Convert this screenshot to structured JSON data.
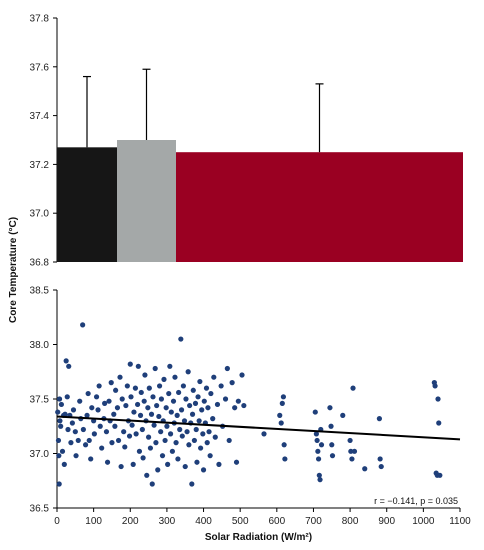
{
  "chart_data": [
    {
      "type": "bar",
      "categories": [
        "",
        "",
        ""
      ],
      "values": [
        37.27,
        37.3,
        37.25
      ],
      "error_upper": [
        37.56,
        37.59,
        37.53
      ],
      "colors": [
        "#161616",
        "#a4a8a8",
        "#9a0022"
      ],
      "ylim": [
        36.8,
        37.8
      ],
      "yticks": [
        "36.8",
        "37.0",
        "37.2",
        "37.4",
        "37.6",
        "37.8"
      ],
      "grid": false
    },
    {
      "type": "scatter",
      "xlabel": "Solar Radiation  (W/m²)",
      "ylabel": "Core Temperature  (°C)",
      "xlim": [
        0,
        1100
      ],
      "ylim": [
        36.5,
        38.5
      ],
      "xticks": [
        "0",
        "100",
        "200",
        "300",
        "400",
        "500",
        "600",
        "700",
        "800",
        "900",
        "1000",
        "1100"
      ],
      "yticks": [
        "36.5",
        "37.0",
        "37.5",
        "38.0",
        "38.5"
      ],
      "point_color": "#1f3f7a",
      "trendline": {
        "x": [
          0,
          1100
        ],
        "y": [
          37.34,
          37.13
        ],
        "color": "#000000"
      },
      "annotation": "r = −0.141, p = 0.035",
      "grid": false,
      "points": [
        [
          2,
          37.38
        ],
        [
          4,
          37.12
        ],
        [
          5,
          36.98
        ],
        [
          6,
          36.72
        ],
        [
          7,
          37.5
        ],
        [
          8,
          37.3
        ],
        [
          10,
          37.25
        ],
        [
          12,
          37.45
        ],
        [
          15,
          37.02
        ],
        [
          18,
          37.35
        ],
        [
          20,
          36.9
        ],
        [
          22,
          37.36
        ],
        [
          25,
          37.85
        ],
        [
          28,
          37.52
        ],
        [
          30,
          37.22
        ],
        [
          32,
          37.8
        ],
        [
          35,
          37.35
        ],
        [
          38,
          37.1
        ],
        [
          42,
          37.28
        ],
        [
          45,
          37.4
        ],
        [
          50,
          37.2
        ],
        [
          52,
          36.98
        ],
        [
          58,
          37.12
        ],
        [
          62,
          37.48
        ],
        [
          65,
          37.32
        ],
        [
          70,
          38.18
        ],
        [
          72,
          37.22
        ],
        [
          78,
          37.08
        ],
        [
          82,
          37.35
        ],
        [
          85,
          37.55
        ],
        [
          88,
          37.12
        ],
        [
          92,
          36.95
        ],
        [
          95,
          37.42
        ],
        [
          100,
          37.3
        ],
        [
          102,
          37.18
        ],
        [
          108,
          37.52
        ],
        [
          112,
          37.4
        ],
        [
          115,
          37.62
        ],
        [
          118,
          37.25
        ],
        [
          122,
          37.05
        ],
        [
          128,
          37.32
        ],
        [
          130,
          37.46
        ],
        [
          135,
          37.2
        ],
        [
          138,
          36.92
        ],
        [
          142,
          37.48
        ],
        [
          145,
          37.3
        ],
        [
          148,
          37.65
        ],
        [
          150,
          37.1
        ],
        [
          155,
          37.36
        ],
        [
          158,
          37.25
        ],
        [
          160,
          37.58
        ],
        [
          165,
          37.42
        ],
        [
          168,
          37.12
        ],
        [
          172,
          37.7
        ],
        [
          175,
          36.88
        ],
        [
          178,
          37.5
        ],
        [
          182,
          37.2
        ],
        [
          185,
          37.06
        ],
        [
          188,
          37.44
        ],
        [
          192,
          37.62
        ],
        [
          195,
          37.3
        ],
        [
          198,
          37.16
        ],
        [
          200,
          37.82
        ],
        [
          202,
          37.52
        ],
        [
          205,
          37.26
        ],
        [
          208,
          36.9
        ],
        [
          210,
          37.38
        ],
        [
          214,
          37.6
        ],
        [
          216,
          37.18
        ],
        [
          220,
          37.45
        ],
        [
          222,
          37.8
        ],
        [
          225,
          37.02
        ],
        [
          228,
          37.35
        ],
        [
          230,
          37.56
        ],
        [
          233,
          37.22
        ],
        [
          235,
          36.96
        ],
        [
          238,
          37.48
        ],
        [
          240,
          37.72
        ],
        [
          243,
          37.3
        ],
        [
          245,
          36.8
        ],
        [
          248,
          37.42
        ],
        [
          250,
          37.15
        ],
        [
          252,
          37.6
        ],
        [
          255,
          37.05
        ],
        [
          258,
          37.36
        ],
        [
          260,
          36.72
        ],
        [
          262,
          37.52
        ],
        [
          265,
          37.26
        ],
        [
          268,
          37.78
        ],
        [
          270,
          37.1
        ],
        [
          272,
          37.44
        ],
        [
          275,
          36.85
        ],
        [
          278,
          37.34
        ],
        [
          280,
          37.62
        ],
        [
          283,
          37.2
        ],
        [
          285,
          37.5
        ],
        [
          288,
          36.98
        ],
        [
          290,
          37.3
        ],
        [
          292,
          37.68
        ],
        [
          295,
          37.12
        ],
        [
          298,
          37.42
        ],
        [
          300,
          37.25
        ],
        [
          302,
          36.9
        ],
        [
          305,
          37.55
        ],
        [
          308,
          37.8
        ],
        [
          310,
          37.18
        ],
        [
          312,
          37.38
        ],
        [
          315,
          37.02
        ],
        [
          318,
          37.48
        ],
        [
          320,
          37.28
        ],
        [
          322,
          37.7
        ],
        [
          325,
          37.1
        ],
        [
          328,
          37.35
        ],
        [
          330,
          36.95
        ],
        [
          332,
          37.56
        ],
        [
          335,
          37.22
        ],
        [
          338,
          38.05
        ],
        [
          340,
          37.4
        ],
        [
          342,
          37.16
        ],
        [
          345,
          37.62
        ],
        [
          348,
          37.3
        ],
        [
          350,
          36.88
        ],
        [
          352,
          37.5
        ],
        [
          355,
          37.2
        ],
        [
          358,
          37.75
        ],
        [
          360,
          37.08
        ],
        [
          362,
          37.44
        ],
        [
          365,
          37.28
        ],
        [
          368,
          36.72
        ],
        [
          370,
          37.36
        ],
        [
          372,
          37.58
        ],
        [
          375,
          37.12
        ],
        [
          378,
          37.46
        ],
        [
          380,
          37.22
        ],
        [
          382,
          36.92
        ],
        [
          385,
          37.52
        ],
        [
          388,
          37.3
        ],
        [
          390,
          37.66
        ],
        [
          392,
          37.05
        ],
        [
          395,
          37.4
        ],
        [
          398,
          37.18
        ],
        [
          400,
          36.85
        ],
        [
          402,
          37.48
        ],
        [
          405,
          37.28
        ],
        [
          408,
          37.6
        ],
        [
          410,
          37.1
        ],
        [
          412,
          37.42
        ],
        [
          415,
          37.2
        ],
        [
          418,
          36.98
        ],
        [
          420,
          37.55
        ],
        [
          425,
          37.32
        ],
        [
          428,
          37.7
        ],
        [
          432,
          37.15
        ],
        [
          438,
          37.45
        ],
        [
          442,
          36.9
        ],
        [
          448,
          37.62
        ],
        [
          452,
          37.25
        ],
        [
          460,
          37.5
        ],
        [
          465,
          37.78
        ],
        [
          470,
          37.12
        ],
        [
          478,
          37.65
        ],
        [
          485,
          37.42
        ],
        [
          490,
          36.92
        ],
        [
          495,
          37.48
        ],
        [
          505,
          37.72
        ],
        [
          510,
          37.44
        ],
        [
          565,
          37.18
        ],
        [
          608,
          37.35
        ],
        [
          612,
          37.28
        ],
        [
          615,
          37.46
        ],
        [
          618,
          37.52
        ],
        [
          620,
          37.08
        ],
        [
          622,
          36.95
        ],
        [
          705,
          37.38
        ],
        [
          708,
          37.18
        ],
        [
          710,
          37.12
        ],
        [
          712,
          37.02
        ],
        [
          714,
          36.95
        ],
        [
          716,
          36.8
        ],
        [
          718,
          36.76
        ],
        [
          720,
          37.22
        ],
        [
          722,
          37.08
        ],
        [
          745,
          37.42
        ],
        [
          748,
          37.25
        ],
        [
          750,
          37.08
        ],
        [
          752,
          36.98
        ],
        [
          780,
          37.35
        ],
        [
          800,
          37.12
        ],
        [
          802,
          37.02
        ],
        [
          805,
          36.95
        ],
        [
          808,
          37.6
        ],
        [
          812,
          37.02
        ],
        [
          840,
          36.86
        ],
        [
          880,
          37.32
        ],
        [
          882,
          36.95
        ],
        [
          885,
          36.88
        ],
        [
          1030,
          37.65
        ],
        [
          1032,
          37.62
        ],
        [
          1035,
          36.82
        ],
        [
          1038,
          36.8
        ],
        [
          1040,
          37.5
        ],
        [
          1042,
          37.28
        ],
        [
          1045,
          36.8
        ]
      ]
    }
  ]
}
